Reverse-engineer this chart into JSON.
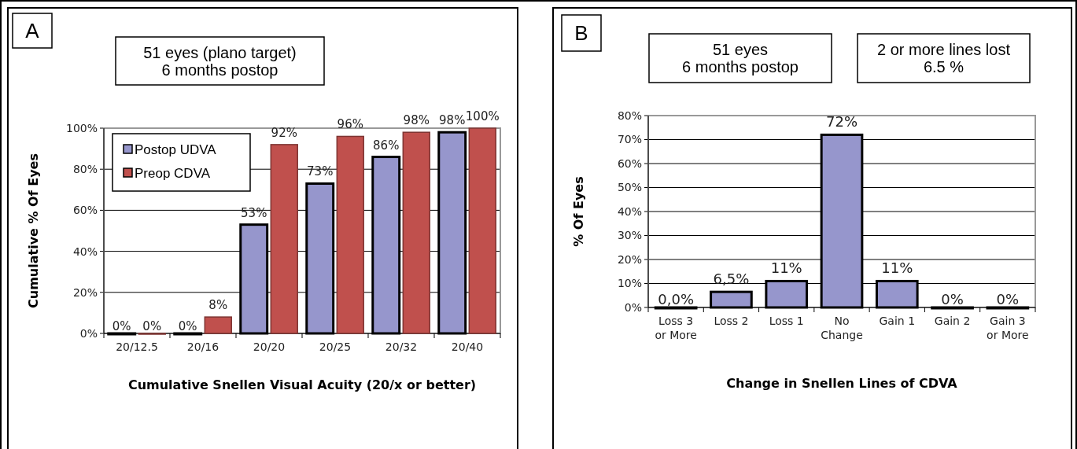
{
  "chart_data": [
    {
      "type": "bar",
      "xlabel": "Cumulative Snellen Visual Acuity (20/x or better)",
      "ylabel": "Cumulative % Of Eyes",
      "annotations": [
        "A",
        "51 eyes (plano target)\n6 months postop"
      ],
      "categories": [
        "20/12.5",
        "20/16",
        "20/20",
        "20/25",
        "20/32",
        "20/40"
      ],
      "series": [
        {
          "name": "Postop UDVA",
          "color": "#9696cc",
          "values": [
            0,
            0,
            53,
            73,
            86,
            98
          ],
          "value_labels": [
            "0%",
            "0%",
            "53%",
            "73%",
            "86%",
            "98%"
          ]
        },
        {
          "name": "Preop CDVA",
          "color": "#c0504d",
          "values": [
            0,
            8,
            92,
            96,
            98,
            100
          ],
          "value_labels": [
            "0%",
            "8%",
            "92%",
            "96%",
            "98%",
            "100%"
          ]
        }
      ],
      "ylim": [
        0,
        100
      ],
      "yticks": [
        {
          "value": 0,
          "label": "0%"
        },
        {
          "value": 20,
          "label": "20%"
        },
        {
          "value": 40,
          "label": "40%"
        },
        {
          "value": 60,
          "label": "60%"
        },
        {
          "value": 80,
          "label": "80%"
        },
        {
          "value": 100,
          "label": "100%"
        }
      ],
      "grid": "y",
      "legend": "top left"
    },
    {
      "type": "bar",
      "xlabel": "Change in Snellen Lines of CDVA",
      "ylabel": "% Of Eyes",
      "annotations": [
        "B",
        "51 eyes\n6 months postop",
        "2 or more lines lost\n6.5 %"
      ],
      "categories": [
        "Loss 3 or More",
        "Loss 2",
        "Loss 1",
        "No Change",
        "Gain 1",
        "Gain 2",
        "Gain 3 or More"
      ],
      "series": [
        {
          "color": "#9696cc",
          "values": [
            0,
            6.5,
            11,
            72,
            11,
            0,
            0
          ],
          "value_labels": [
            "0,0%",
            "6,5%",
            "11%",
            "72%",
            "11%",
            "0%",
            "0%"
          ]
        }
      ],
      "ylim": [
        0,
        80
      ],
      "yticks": [
        {
          "value": 0,
          "label": "0%"
        },
        {
          "value": 10,
          "label": "10%"
        },
        {
          "value": 20,
          "label": "20%"
        },
        {
          "value": 30,
          "label": "30%"
        },
        {
          "value": 40,
          "label": "40%"
        },
        {
          "value": 50,
          "label": "50%"
        },
        {
          "value": 60,
          "label": "60%"
        },
        {
          "value": 70,
          "label": "70%"
        },
        {
          "value": 80,
          "label": "80%"
        }
      ],
      "grid": "y"
    }
  ]
}
